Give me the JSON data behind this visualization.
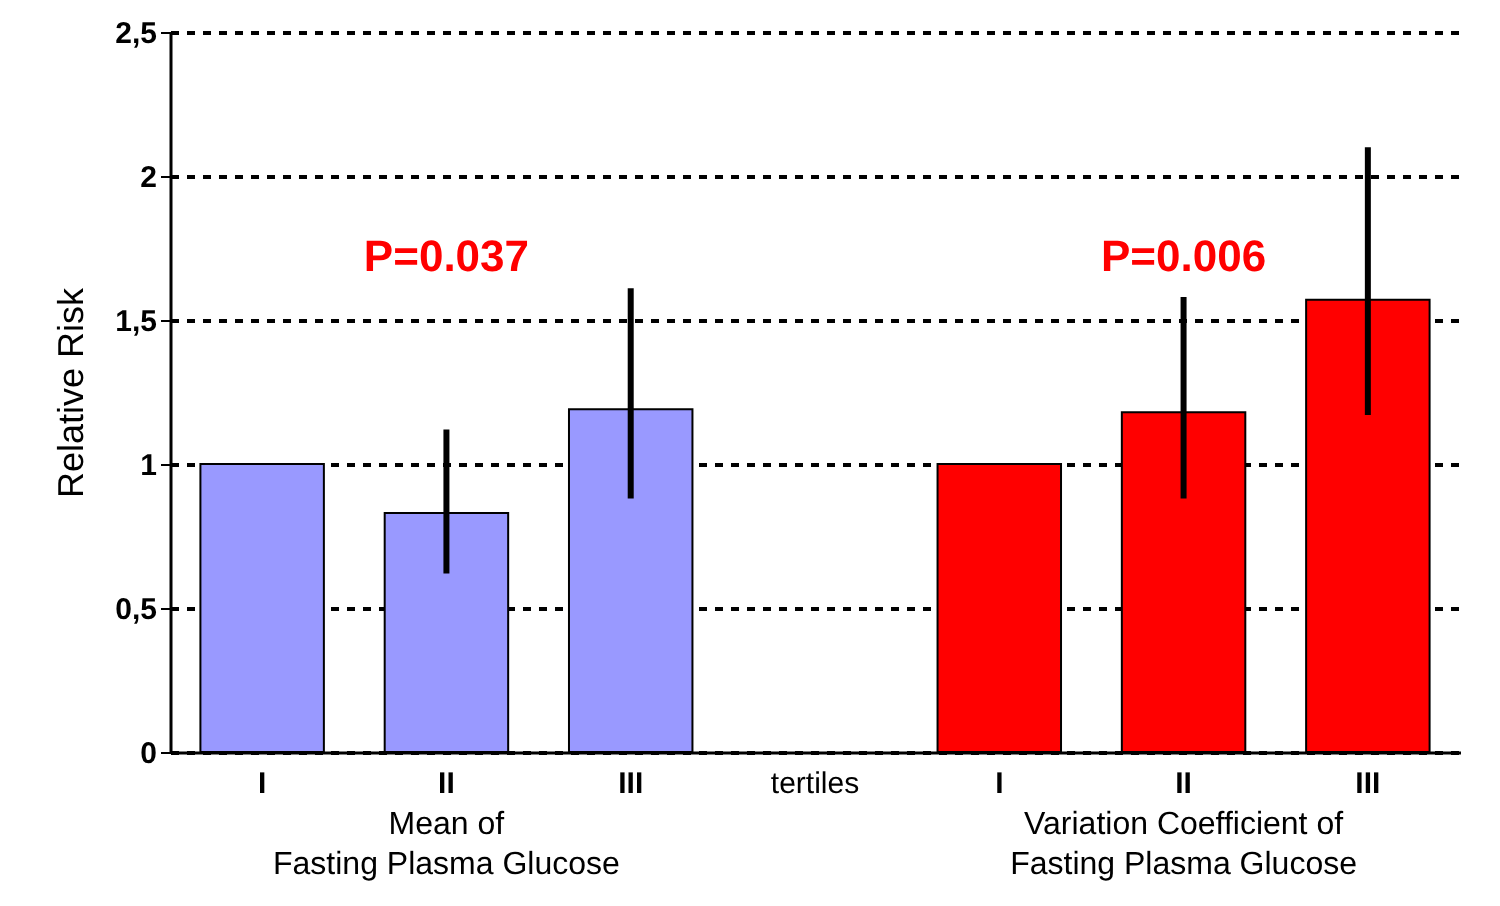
{
  "chart_data": {
    "type": "bar",
    "ylabel": "Relative Risk",
    "categories": [
      "I",
      "II",
      "III",
      "tertiles",
      "I",
      "II",
      "III"
    ],
    "values": [
      1.0,
      0.83,
      1.19,
      null,
      1.0,
      1.18,
      1.57
    ],
    "colors": [
      "#9999ff",
      "#9999ff",
      "#9999ff",
      "#ffffff",
      "#ff0000",
      "#ff0000",
      "#ff0000"
    ],
    "errors": [
      null,
      [
        0.62,
        1.12
      ],
      [
        0.88,
        1.61
      ],
      null,
      null,
      [
        0.88,
        1.58
      ],
      [
        1.17,
        2.1
      ]
    ],
    "ylim": [
      0,
      2.5
    ],
    "yticks": [
      0,
      {
        "value": 0.5,
        "label": "0,5"
      },
      1,
      {
        "value": 1.5,
        "label": "1,5"
      },
      2,
      {
        "value": 2.5,
        "label": "2,5"
      }
    ],
    "grid": "y",
    "annotations": [
      "P=0.037",
      "P=0.006",
      "Mean of\nFasting Plasma Glucose",
      "Variation Coefficient of\nFasting Plasma Glucose"
    ]
  }
}
